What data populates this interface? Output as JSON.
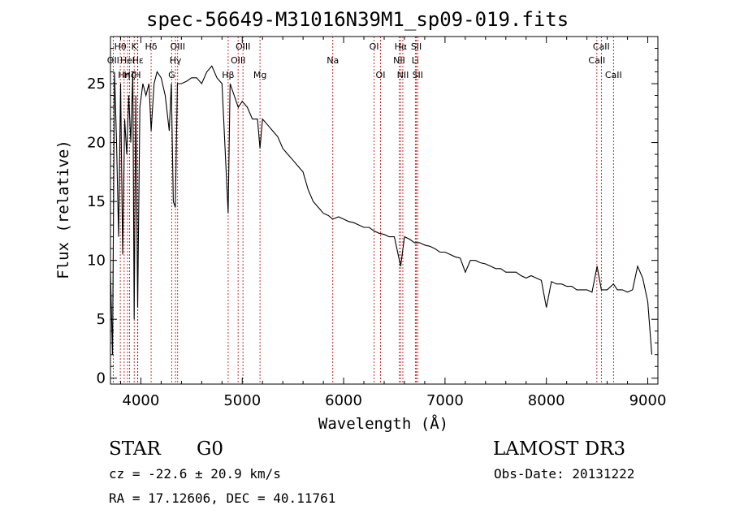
{
  "chart_data": {
    "type": "line",
    "title": "spec-56649-M31016N39M1_sp09-019.fits",
    "xlabel": "Wavelength (Å)",
    "ylabel": "Flux (relative)",
    "xlim": [
      3700,
      9100
    ],
    "ylim": [
      -0.5,
      29
    ],
    "xticks": [
      4000,
      5000,
      6000,
      7000,
      8000,
      9000
    ],
    "yticks": [
      0,
      5,
      10,
      15,
      20,
      25
    ],
    "series": [
      {
        "name": "spectrum",
        "x": [
          3700,
          3720,
          3740,
          3760,
          3780,
          3800,
          3820,
          3840,
          3860,
          3880,
          3900,
          3920,
          3934,
          3950,
          3968,
          3990,
          4020,
          4050,
          4080,
          4101,
          4130,
          4160,
          4200,
          4240,
          4280,
          4300,
          4320,
          4340,
          4360,
          4400,
          4450,
          4500,
          4550,
          4600,
          4650,
          4700,
          4750,
          4800,
          4861,
          4880,
          4920,
          4960,
          5000,
          5050,
          5100,
          5150,
          5175,
          5200,
          5250,
          5300,
          5350,
          5400,
          5450,
          5500,
          5550,
          5600,
          5650,
          5700,
          5750,
          5800,
          5850,
          5893,
          5950,
          6000,
          6050,
          6100,
          6150,
          6200,
          6250,
          6300,
          6350,
          6400,
          6450,
          6500,
          6563,
          6600,
          6650,
          6700,
          6750,
          6800,
          6850,
          6900,
          6950,
          7000,
          7050,
          7100,
          7150,
          7200,
          7250,
          7300,
          7350,
          7400,
          7450,
          7500,
          7550,
          7600,
          7650,
          7700,
          7750,
          7800,
          7850,
          7900,
          7950,
          8000,
          8050,
          8100,
          8150,
          8200,
          8250,
          8300,
          8350,
          8400,
          8450,
          8500,
          8542,
          8600,
          8662,
          8700,
          8750,
          8800,
          8850,
          8900,
          8950,
          9000,
          9040
        ],
        "values": [
          9.0,
          2.0,
          26.0,
          20.0,
          12.0,
          25.0,
          10.5,
          22.0,
          19.0,
          24.0,
          20.0,
          26.0,
          5.0,
          24.0,
          6.0,
          23.0,
          25.0,
          24.0,
          25.0,
          21.0,
          25.0,
          26.0,
          25.5,
          24.0,
          21.0,
          25.0,
          15.0,
          14.5,
          25.0,
          25.0,
          25.2,
          25.5,
          25.5,
          25.0,
          26.0,
          26.5,
          25.5,
          25.0,
          14.0,
          25.0,
          24.0,
          23.0,
          23.5,
          23.0,
          22.0,
          22.0,
          19.5,
          22.0,
          21.5,
          21.0,
          20.5,
          19.5,
          19.0,
          18.5,
          18.0,
          17.5,
          16.0,
          15.0,
          14.5,
          14.0,
          13.8,
          13.5,
          13.7,
          13.5,
          13.3,
          13.2,
          13.0,
          12.8,
          12.8,
          12.5,
          12.3,
          12.2,
          12.0,
          12.0,
          9.5,
          12.0,
          11.8,
          11.5,
          11.5,
          11.3,
          11.2,
          11.0,
          10.7,
          10.7,
          10.5,
          10.3,
          10.2,
          9.0,
          10.0,
          10.0,
          9.8,
          9.7,
          9.5,
          9.3,
          9.3,
          9.0,
          9.0,
          9.0,
          8.7,
          8.5,
          8.7,
          8.5,
          8.3,
          6.0,
          8.2,
          8.0,
          8.0,
          7.8,
          7.8,
          7.5,
          7.5,
          7.5,
          7.3,
          9.5,
          7.5,
          7.5,
          8.0,
          7.5,
          7.5,
          7.3,
          7.5,
          9.5,
          8.5,
          6.5,
          2.0
        ]
      }
    ],
    "lines": [
      {
        "wl": 3727,
        "label": "OII",
        "row": 1
      },
      {
        "wl": 3797,
        "label": "Hθ",
        "row": 0
      },
      {
        "wl": 3835,
        "label": "Hη",
        "row": 2
      },
      {
        "wl": 3869,
        "label": "HeI",
        "row": 1
      },
      {
        "wl": 3889,
        "label": "Hζ",
        "row": 2
      },
      {
        "wl": 3934,
        "label": "K",
        "row": 0
      },
      {
        "wl": 3968,
        "label": "H",
        "row": 2
      },
      {
        "wl": 3970,
        "label": "Hε",
        "row": 1
      },
      {
        "wl": 4101,
        "label": "Hδ",
        "row": 0
      },
      {
        "wl": 4304,
        "label": "G",
        "row": 2
      },
      {
        "wl": 4341,
        "label": "Hγ",
        "row": 1
      },
      {
        "wl": 4363,
        "label": "OIII",
        "row": 0
      },
      {
        "wl": 4861,
        "label": "Hβ",
        "row": 2
      },
      {
        "wl": 4959,
        "label": "OIII",
        "row": 1
      },
      {
        "wl": 5007,
        "label": "OIII",
        "row": 0
      },
      {
        "wl": 5175,
        "label": "Mg",
        "row": 2
      },
      {
        "wl": 5893,
        "label": "Na",
        "row": 1
      },
      {
        "wl": 6300,
        "label": "OI",
        "row": 0
      },
      {
        "wl": 6364,
        "label": "OI",
        "row": 2
      },
      {
        "wl": 6548,
        "label": "NII",
        "row": 1
      },
      {
        "wl": 6563,
        "label": "Hα",
        "row": 0
      },
      {
        "wl": 6584,
        "label": "NII",
        "row": 2
      },
      {
        "wl": 6707,
        "label": "Li",
        "row": 1
      },
      {
        "wl": 6717,
        "label": "SII",
        "row": 0
      },
      {
        "wl": 6731,
        "label": "SII",
        "row": 2
      },
      {
        "wl": 8498,
        "label": "CaII",
        "row": 1
      },
      {
        "wl": 8542,
        "label": "CaII",
        "row": 0
      },
      {
        "wl": 8662,
        "label": "CaII",
        "row": 2
      }
    ]
  },
  "info": {
    "object_class": "STAR",
    "subclass": "G0",
    "survey": "LAMOST DR3",
    "cz": "cz = -22.6 ± 20.9 km/s",
    "obs_date": "Obs-Date: 20131222",
    "coords": "RA =  17.12606, DEC =  40.11761"
  }
}
